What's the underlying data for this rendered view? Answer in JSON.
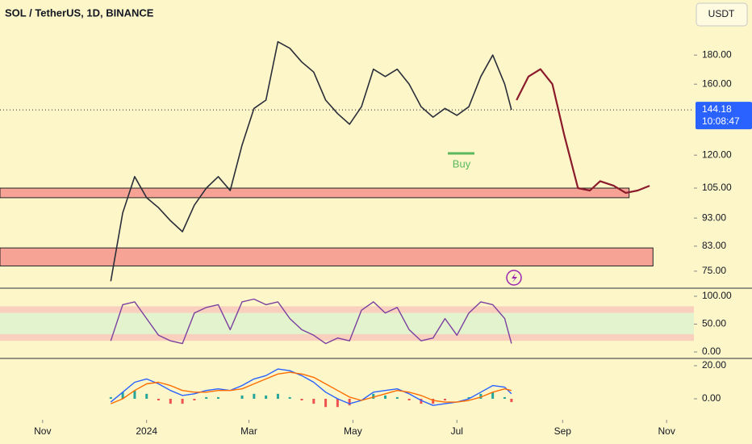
{
  "chart_data": [
    {
      "type": "line",
      "title": "SOL / TetherUS, 1D, BINANCE",
      "currency": "USDT",
      "log_scale": true,
      "xlim": [
        6,
        413
      ],
      "ylim": [
        70,
        225
      ],
      "yticks": [
        {
          "value": 75,
          "label": "75.00"
        },
        {
          "value": 83,
          "label": "83.00"
        },
        {
          "value": 93,
          "label": "93.00"
        },
        {
          "value": 105,
          "label": "105.00"
        },
        {
          "value": 120,
          "label": "120.00"
        },
        {
          "value": 160,
          "label": "160.00"
        },
        {
          "value": 180,
          "label": "180.00"
        }
      ],
      "x": [
        71,
        78,
        85,
        92,
        99,
        106,
        113,
        120,
        127,
        134,
        141,
        148,
        155,
        162,
        169,
        176,
        183,
        190,
        197,
        204,
        211,
        218,
        225,
        232,
        239,
        246,
        253,
        260,
        267,
        274,
        281,
        288,
        295,
        302,
        306
      ],
      "series": [
        {
          "color": "#2a2e39",
          "values": [
            72,
            95,
            110,
            101,
            97,
            92,
            88,
            98,
            105,
            110,
            104,
            125,
            145,
            150,
            190,
            185,
            175,
            168,
            150,
            142,
            136,
            146,
            170,
            165,
            170,
            160,
            146,
            140,
            145,
            141,
            146,
            165,
            180,
            160,
            144.18
          ]
        }
      ],
      "projection": {
        "color": "#8b1a2b",
        "x": [
          309,
          316,
          323,
          330,
          337,
          345,
          352,
          358,
          366,
          373,
          380,
          387
        ],
        "values": [
          150,
          165,
          170,
          160,
          130,
          105,
          104,
          108,
          106,
          103,
          104,
          106
        ]
      },
      "zones": [
        {
          "ylim": [
            101,
            105
          ],
          "xlim": [
            6,
            375
          ]
        },
        {
          "ylim": [
            76.6,
            82.4
          ],
          "xlim": [
            6,
            389
          ]
        }
      ],
      "zone_color": "#f6a395",
      "last_price": {
        "value": 144.18,
        "label": "144.18",
        "countdown": "10:08:47",
        "color": "#2962ff"
      },
      "annotation": "Buy"
    },
    {
      "type": "line",
      "xlim": [
        6,
        413
      ],
      "ylim": [
        -11.6,
        114.5
      ],
      "yticks": [
        {
          "value": 100,
          "label": "100.00"
        },
        {
          "value": 50,
          "label": "50.00"
        },
        {
          "value": 0,
          "label": "0.00"
        }
      ],
      "bands": [
        {
          "ylim": [
            70,
            82
          ],
          "color": "#f7c0b8"
        },
        {
          "ylim": [
            32,
            70
          ],
          "color": "#d6f2cf"
        },
        {
          "ylim": [
            20,
            32
          ],
          "color": "#f7c0b8"
        }
      ],
      "x": [
        71,
        78,
        85,
        92,
        99,
        106,
        113,
        120,
        127,
        134,
        141,
        148,
        155,
        162,
        169,
        176,
        183,
        190,
        197,
        204,
        211,
        218,
        225,
        232,
        239,
        246,
        253,
        260,
        267,
        274,
        281,
        288,
        295,
        302,
        306
      ],
      "series": [
        {
          "color": "#7b3fa0",
          "values": [
            20,
            85,
            90,
            60,
            30,
            20,
            15,
            70,
            80,
            85,
            40,
            90,
            95,
            85,
            90,
            60,
            40,
            30,
            15,
            25,
            20,
            75,
            90,
            70,
            80,
            40,
            20,
            25,
            60,
            30,
            70,
            90,
            85,
            60,
            15
          ]
        }
      ]
    },
    {
      "type": "line",
      "xlim": [
        6,
        413
      ],
      "ylim": [
        -12.7,
        24.4
      ],
      "yticks": [
        {
          "value": 20,
          "label": "20.00"
        },
        {
          "value": 0,
          "label": "0.00"
        }
      ],
      "xticks": [
        {
          "value": 31,
          "label": "Nov"
        },
        {
          "value": 92,
          "label": "2024"
        },
        {
          "value": 152,
          "label": "Mar"
        },
        {
          "value": 213,
          "label": "May"
        },
        {
          "value": 274,
          "label": "Jul"
        },
        {
          "value": 336,
          "label": "Sep"
        },
        {
          "value": 397,
          "label": "Nov"
        }
      ],
      "x": [
        71,
        78,
        85,
        92,
        99,
        106,
        113,
        120,
        127,
        134,
        141,
        148,
        155,
        162,
        169,
        176,
        183,
        190,
        197,
        204,
        211,
        218,
        225,
        232,
        239,
        246,
        253,
        260,
        267,
        274,
        281,
        288,
        295,
        302,
        306
      ],
      "series": [
        {
          "color": "#2962ff",
          "values": [
            -2,
            4,
            10,
            12,
            9,
            5,
            2,
            3,
            5,
            6,
            5,
            8,
            12,
            14,
            18,
            17,
            14,
            10,
            4,
            0,
            -3,
            -1,
            4,
            5,
            6,
            3,
            -1,
            -4,
            -3,
            -2,
            0,
            4,
            8,
            7,
            3
          ]
        },
        {
          "color": "#ff6d00",
          "values": [
            -3,
            0,
            5,
            9,
            10,
            8,
            5,
            4,
            4,
            5,
            5,
            6,
            9,
            12,
            15,
            16,
            15,
            13,
            9,
            5,
            1,
            -1,
            1,
            3,
            5,
            4,
            2,
            -1,
            -2,
            -2,
            -1,
            1,
            4,
            6,
            5
          ]
        }
      ],
      "histogram": {
        "colors": [
          "#26a69a",
          "#ef5350"
        ],
        "values": [
          1,
          4,
          5,
          3,
          -1,
          -3,
          -3,
          -1,
          1,
          1,
          0,
          2,
          3,
          2,
          3,
          1,
          -1,
          -3,
          -5,
          -5,
          -4,
          0,
          3,
          2,
          1,
          -1,
          -3,
          -3,
          -1,
          0,
          1,
          3,
          4,
          1,
          -2
        ]
      }
    }
  ]
}
